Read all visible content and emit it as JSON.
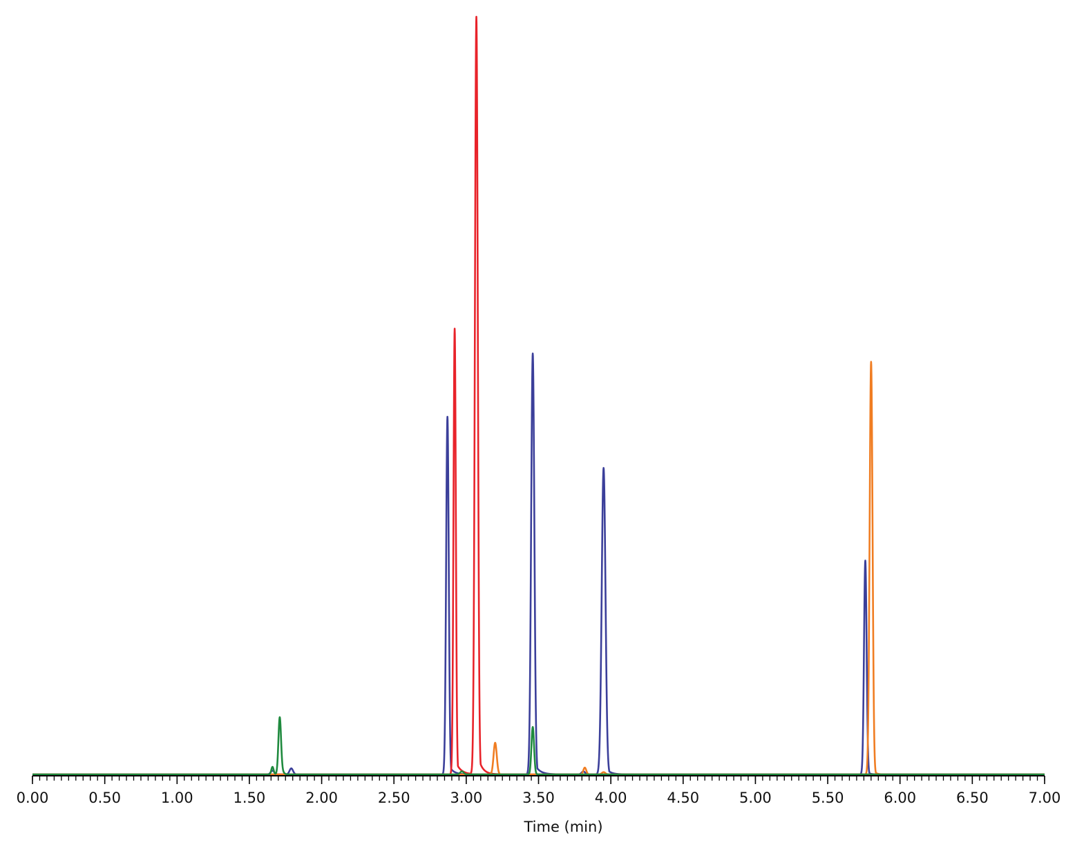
{
  "chart_data": {
    "type": "line",
    "title": "",
    "xlabel": "Time (min)",
    "ylabel": "",
    "xlim": [
      0.0,
      7.0
    ],
    "ylim": [
      0,
      100
    ],
    "x_tick_labels": [
      "0.00",
      "0.50",
      "1.00",
      "1.50",
      "2.00",
      "2.50",
      "3.00",
      "3.50",
      "4.00",
      "4.50",
      "5.00",
      "5.50",
      "6.00",
      "6.50",
      "7.00"
    ],
    "x_ticks": [
      0.0,
      0.5,
      1.0,
      1.5,
      2.0,
      2.5,
      3.0,
      3.5,
      4.0,
      4.5,
      5.0,
      5.5,
      6.0,
      6.5,
      7.0
    ],
    "minor_tick_step": 0.05,
    "grid": false,
    "legend": "none",
    "series": [
      {
        "color": "#3b3f9a",
        "peaks": [
          {
            "rt": 1.66,
            "height": 0.5,
            "width": 0.012
          },
          {
            "rt": 1.79,
            "height": 0.8,
            "width": 0.012
          },
          {
            "rt": 2.87,
            "height": 47.5,
            "width": 0.009,
            "tail": 0.03
          },
          {
            "rt": 3.46,
            "height": 55.9,
            "width": 0.011,
            "tail": 0.035
          },
          {
            "rt": 3.81,
            "height": 0.4,
            "width": 0.012
          },
          {
            "rt": 3.95,
            "height": 40.7,
            "width": 0.013,
            "tail": 0.03
          },
          {
            "rt": 5.76,
            "height": 28.4,
            "width": 0.009,
            "tail": 0.015
          }
        ]
      },
      {
        "color": "#e8232a",
        "peaks": [
          {
            "rt": 2.92,
            "height": 59.2,
            "width": 0.008,
            "tail": 0.035
          },
          {
            "rt": 3.07,
            "height": 100,
            "width": 0.01,
            "tail": 0.03
          },
          {
            "rt": 3.07,
            "height": 0.6,
            "width": 0.012
          }
        ]
      },
      {
        "color": "#f07d22",
        "peaks": [
          {
            "rt": 3.2,
            "height": 4.2,
            "width": 0.011
          },
          {
            "rt": 3.82,
            "height": 0.9,
            "width": 0.01
          },
          {
            "rt": 3.95,
            "height": 0.3,
            "width": 0.012
          },
          {
            "rt": 5.8,
            "height": 54.8,
            "width": 0.01,
            "tail": 0.015
          }
        ]
      },
      {
        "color": "#1f8a3e",
        "peaks": [
          {
            "rt": 1.66,
            "height": 1.0,
            "width": 0.008
          },
          {
            "rt": 1.71,
            "height": 7.2,
            "width": 0.009
          },
          {
            "rt": 1.72,
            "height": 0.5,
            "width": 0.015
          },
          {
            "rt": 2.97,
            "height": 0.4,
            "width": 0.012
          },
          {
            "rt": 3.46,
            "height": 6.3,
            "width": 0.009,
            "tail": 0.01
          }
        ]
      }
    ]
  }
}
